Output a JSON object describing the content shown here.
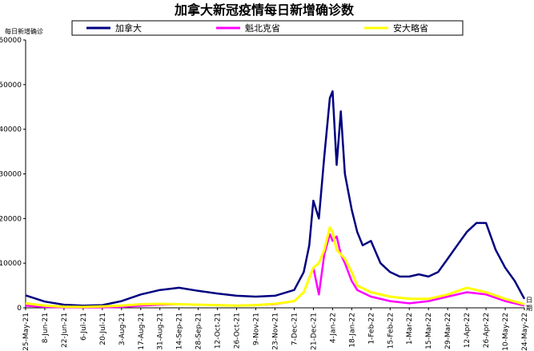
{
  "chart_data": {
    "type": "line",
    "title": "加拿大新冠疫情每日新增确诊数",
    "ylabel": "每日新增确诊",
    "xlabel": "日期",
    "ylim": [
      0,
      60000
    ],
    "yticks": [
      0,
      10000,
      20000,
      30000,
      40000,
      50000,
      60000
    ],
    "xtick_labels": [
      "25-May-21",
      "8-Jun-21",
      "22-Jun-21",
      "6-Jul-21",
      "20-Jul-21",
      "3-Aug-21",
      "17-Aug-21",
      "31-Aug-21",
      "14-Sep-21",
      "28-Sep-21",
      "12-Oct-21",
      "26-Oct-21",
      "9-Nov-21",
      "23-Nov-21",
      "7-Dec-21",
      "21-Dec-21",
      "4-Jan-22",
      "18-Jan-22",
      "1-Feb-22",
      "15-Feb-22",
      "1-Mar-22",
      "15-Mar-22",
      "29-Mar-22",
      "12-Apr-22",
      "26-Apr-22",
      "10-May-22",
      "24-May-22"
    ],
    "grid": false,
    "legend_position": "top",
    "series": [
      {
        "name": "加拿大",
        "color": "#000080",
        "x": [
          "25-May-21",
          "8-Jun-21",
          "22-Jun-21",
          "6-Jul-21",
          "20-Jul-21",
          "3-Aug-21",
          "17-Aug-21",
          "31-Aug-21",
          "14-Sep-21",
          "28-Sep-21",
          "12-Oct-21",
          "26-Oct-21",
          "9-Nov-21",
          "23-Nov-21",
          "7-Dec-21",
          "14-Dec-21",
          "18-Dec-21",
          "21-Dec-21",
          "25-Dec-21",
          "29-Dec-21",
          "2-Jan-22",
          "4-Jan-22",
          "7-Jan-22",
          "10-Jan-22",
          "13-Jan-22",
          "18-Jan-22",
          "22-Jan-22",
          "26-Jan-22",
          "1-Feb-22",
          "8-Feb-22",
          "15-Feb-22",
          "22-Feb-22",
          "1-Mar-22",
          "8-Mar-22",
          "15-Mar-22",
          "22-Mar-22",
          "29-Mar-22",
          "5-Apr-22",
          "12-Apr-22",
          "19-Apr-22",
          "26-Apr-22",
          "3-May-22",
          "10-May-22",
          "17-May-22",
          "24-May-22"
        ],
        "values": [
          2800,
          1400,
          700,
          500,
          600,
          1500,
          3000,
          4000,
          4500,
          3800,
          3200,
          2700,
          2500,
          2700,
          4000,
          8000,
          14000,
          24000,
          20000,
          34000,
          47000,
          48500,
          32000,
          44000,
          30000,
          22000,
          17000,
          14000,
          15000,
          10000,
          8000,
          7000,
          7000,
          7500,
          7000,
          8000,
          11000,
          14000,
          17000,
          19000,
          19000,
          13000,
          9000,
          6000,
          2000
        ]
      },
      {
        "name": "魁北克省",
        "color": "#ff00ff",
        "x": [
          "25-May-21",
          "8-Jun-21",
          "22-Jun-21",
          "6-Jul-21",
          "20-Jul-21",
          "3-Aug-21",
          "17-Aug-21",
          "31-Aug-21",
          "14-Sep-21",
          "28-Sep-21",
          "12-Oct-21",
          "26-Oct-21",
          "9-Nov-21",
          "23-Nov-21",
          "7-Dec-21",
          "14-Dec-21",
          "21-Dec-21",
          "25-Dec-21",
          "29-Dec-21",
          "2-Jan-22",
          "4-Jan-22",
          "7-Jan-22",
          "10-Jan-22",
          "13-Jan-22",
          "18-Jan-22",
          "22-Jan-22",
          "1-Feb-22",
          "15-Feb-22",
          "1-Mar-22",
          "15-Mar-22",
          "29-Mar-22",
          "12-Apr-22",
          "26-Apr-22",
          "10-May-22",
          "24-May-22"
        ],
        "values": [
          500,
          200,
          100,
          80,
          100,
          200,
          500,
          700,
          800,
          700,
          600,
          500,
          600,
          800,
          1500,
          3500,
          9000,
          3000,
          12000,
          16500,
          15000,
          16000,
          12000,
          10000,
          6000,
          4000,
          2500,
          1500,
          1000,
          1500,
          2500,
          3500,
          3000,
          1500,
          500
        ]
      },
      {
        "name": "安大略省",
        "color": "#ffff00",
        "x": [
          "25-May-21",
          "8-Jun-21",
          "22-Jun-21",
          "6-Jul-21",
          "20-Jul-21",
          "3-Aug-21",
          "17-Aug-21",
          "31-Aug-21",
          "14-Sep-21",
          "28-Sep-21",
          "12-Oct-21",
          "26-Oct-21",
          "9-Nov-21",
          "23-Nov-21",
          "7-Dec-21",
          "14-Dec-21",
          "21-Dec-21",
          "25-Dec-21",
          "29-Dec-21",
          "2-Jan-22",
          "4-Jan-22",
          "7-Jan-22",
          "10-Jan-22",
          "13-Jan-22",
          "18-Jan-22",
          "22-Jan-22",
          "1-Feb-22",
          "15-Feb-22",
          "1-Mar-22",
          "15-Mar-22",
          "29-Mar-22",
          "12-Apr-22",
          "26-Apr-22",
          "10-May-22",
          "24-May-22"
        ],
        "values": [
          1000,
          500,
          250,
          200,
          300,
          500,
          800,
          900,
          800,
          700,
          600,
          500,
          600,
          900,
          1500,
          3500,
          9000,
          10000,
          13000,
          18000,
          17000,
          13000,
          12000,
          11000,
          8000,
          5000,
          3500,
          2500,
          2000,
          2000,
          3000,
          4500,
          3500,
          2000,
          800
        ]
      }
    ]
  }
}
